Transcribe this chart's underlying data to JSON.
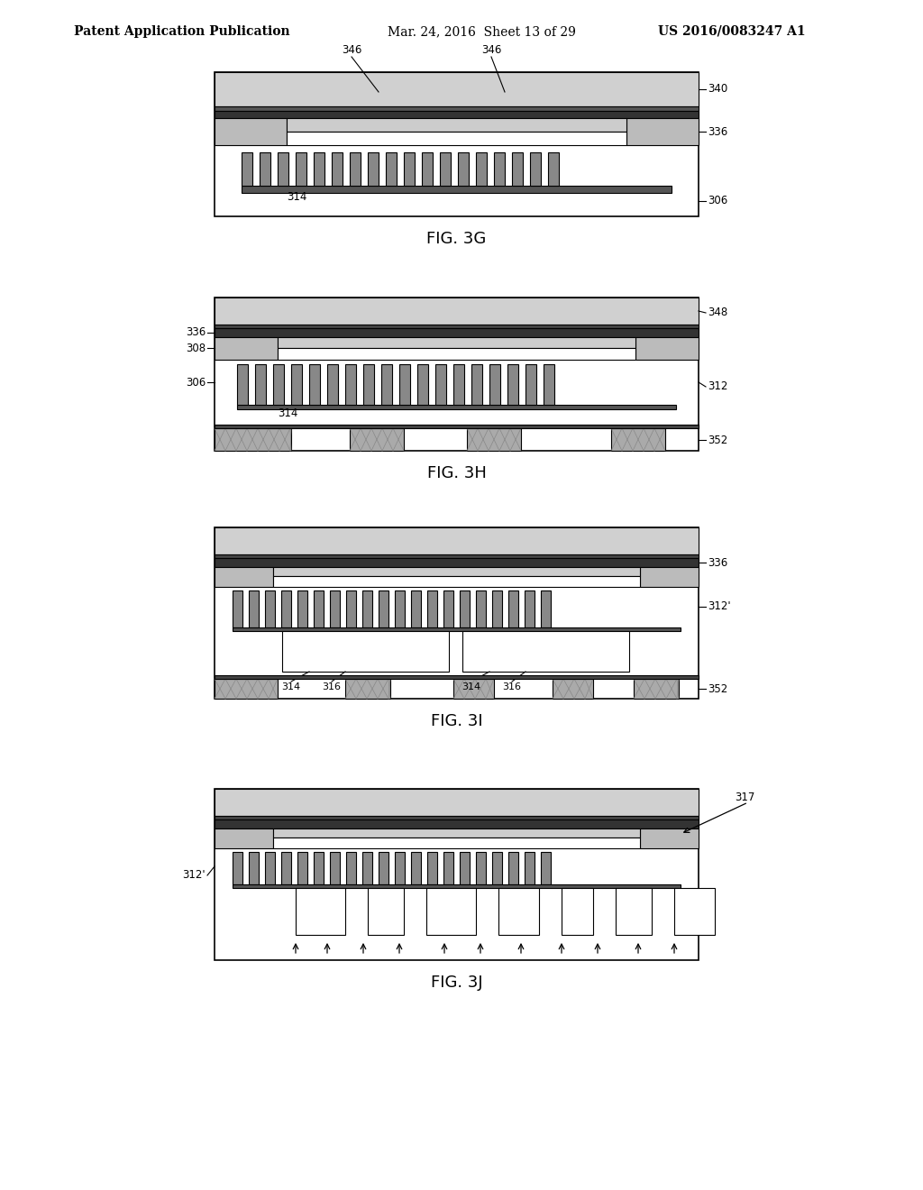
{
  "bg_color": "#ffffff",
  "line_color": "#000000",
  "fill_light": "#e8e8e8",
  "fill_dark": "#404040",
  "fill_mid": "#888888",
  "fill_xhatch": "#cccccc",
  "header_text": "Patent Application Publication",
  "header_date": "Mar. 24, 2016  Sheet 13 of 29",
  "header_patent": "US 2016/0083247 A1",
  "fig_labels": [
    "FIG. 3G",
    "FIG. 3H",
    "FIG. 3I",
    "FIG. 3J"
  ],
  "ref_numbers": {
    "fig3g": [
      "346",
      "346",
      "340",
      "336",
      "306",
      "314"
    ],
    "fig3h": [
      "336",
      "348",
      "308",
      "306",
      "312",
      "314",
      "352"
    ],
    "fig3i": [
      "336",
      "312'",
      "314",
      "316",
      "314",
      "316",
      "352"
    ],
    "fig3j": [
      "312'",
      "317"
    ]
  }
}
